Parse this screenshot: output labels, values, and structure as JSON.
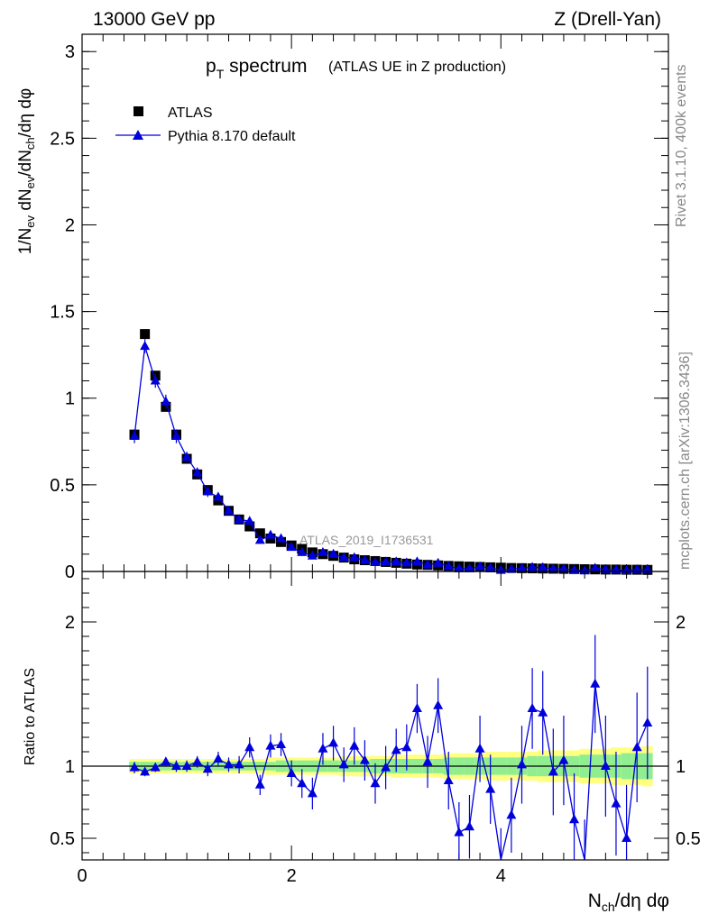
{
  "header": {
    "energy": "13000 GeV pp",
    "process": "Z (Drell-Yan)"
  },
  "side_text": {
    "rivet": "Rivet 3.1.10,  400k events",
    "mcplots": "mcplots.cern.ch [arXiv:1306.3436]"
  },
  "title": {
    "main_p": "p",
    "main_sub": "T",
    "main_rest": " spectrum",
    "context": "(ATLAS UE in Z production)"
  },
  "analysis_label": "ATLAS_2019_I1736531",
  "colors": {
    "data": "#000000",
    "mc": "#0000dd",
    "band_inner": "#90ee90",
    "band_outer": "#ffff80"
  },
  "chart_data": [
    {
      "type": "scatter",
      "ylabel": "1/Nev dNev/dNch/dη dφ",
      "xlim": [
        0,
        5.6
      ],
      "ylim": [
        0,
        3.1
      ],
      "yticks": [
        0,
        0.5,
        1,
        1.5,
        2,
        2.5,
        3
      ],
      "ytick_labels": [
        "0",
        "0.5",
        "1",
        "1.5",
        "2",
        "2.5",
        "3"
      ],
      "legend": {
        "placement": "top-left",
        "data_label": "ATLAS",
        "mc_label": "Pythia 8.170 default"
      },
      "x": [
        0.5,
        0.6,
        0.7,
        0.8,
        0.9,
        1.0,
        1.1,
        1.2,
        1.3,
        1.4,
        1.5,
        1.6,
        1.7,
        1.8,
        1.9,
        2.0,
        2.1,
        2.2,
        2.3,
        2.4,
        2.5,
        2.6,
        2.7,
        2.8,
        2.9,
        3.0,
        3.1,
        3.2,
        3.3,
        3.4,
        3.5,
        3.6,
        3.7,
        3.8,
        3.9,
        4.0,
        4.1,
        4.2,
        4.3,
        4.4,
        4.5,
        4.6,
        4.7,
        4.8,
        4.9,
        5.0,
        5.1,
        5.2,
        5.3,
        5.4
      ],
      "series": [
        {
          "name": "ATLAS",
          "values": [
            0.79,
            1.37,
            1.13,
            0.95,
            0.79,
            0.65,
            0.56,
            0.47,
            0.41,
            0.35,
            0.3,
            0.26,
            0.22,
            0.19,
            0.17,
            0.15,
            0.13,
            0.11,
            0.1,
            0.09,
            0.08,
            0.07,
            0.065,
            0.06,
            0.055,
            0.05,
            0.045,
            0.04,
            0.038,
            0.035,
            0.032,
            0.03,
            0.028,
            0.026,
            0.024,
            0.022,
            0.02,
            0.019,
            0.018,
            0.017,
            0.016,
            0.015,
            0.014,
            0.013,
            0.012,
            0.011,
            0.011,
            0.01,
            0.01,
            0.009
          ]
        },
        {
          "name": "Pythia 8.170 default",
          "values": [
            0.78,
            1.3,
            1.1,
            0.98,
            0.78,
            0.66,
            0.57,
            0.46,
            0.43,
            0.35,
            0.3,
            0.29,
            0.18,
            0.21,
            0.19,
            0.14,
            0.11,
            0.09,
            0.11,
            0.1,
            0.08,
            0.08,
            0.065,
            0.052,
            0.055,
            0.056,
            0.05,
            0.056,
            0.039,
            0.048,
            0.029,
            0.016,
            0.016,
            0.028,
            0.02,
            0.007,
            0.013,
            0.019,
            0.024,
            0.023,
            0.015,
            0.015,
            0.009,
            0.004,
            0.019,
            0.011,
            0.009,
            0.005,
            0.011,
            0.011
          ],
          "errors": [
            0.04,
            0.04,
            0.04,
            0.04,
            0.04,
            0.03,
            0.03,
            0.03,
            0.02,
            0.02,
            0.02,
            0.02,
            0.02,
            0.01,
            0.01,
            0.01,
            0.01,
            0.01,
            0.01,
            0.01,
            0.01,
            0.01,
            0.01,
            0.01,
            0.01,
            0.01,
            0.01,
            0.01,
            0.01,
            0.01,
            0.01,
            0.01,
            0.01,
            0.01,
            0.01,
            0.01,
            0.01,
            0.01,
            0.01,
            0.01,
            0.01,
            0.01,
            0.01,
            0.01,
            0.01,
            0.01,
            0.01,
            0.01,
            0.01,
            0.01
          ]
        }
      ]
    },
    {
      "type": "line",
      "xlabel": "Nch/dη dφ",
      "ylabel": "Ratio to ATLAS",
      "xlim": [
        0,
        5.6
      ],
      "ylim": [
        0.35,
        2.35
      ],
      "xticks": [
        0,
        2,
        4
      ],
      "xtick_labels": [
        "0",
        "2",
        "4"
      ],
      "yticks": [
        0.5,
        1,
        2
      ],
      "ytick_labels": [
        "0.5",
        "1",
        "2"
      ],
      "x": [
        0.5,
        0.6,
        0.7,
        0.8,
        0.9,
        1.0,
        1.1,
        1.2,
        1.3,
        1.4,
        1.5,
        1.6,
        1.7,
        1.8,
        1.9,
        2.0,
        2.1,
        2.2,
        2.3,
        2.4,
        2.5,
        2.6,
        2.7,
        2.8,
        2.9,
        3.0,
        3.1,
        3.2,
        3.3,
        3.4,
        3.5,
        3.6,
        3.7,
        3.8,
        3.9,
        4.0,
        4.1,
        4.2,
        4.3,
        4.4,
        4.5,
        4.6,
        4.7,
        4.8,
        4.9,
        5.0,
        5.1,
        5.2,
        5.3,
        5.4
      ],
      "series": [
        {
          "name": "Pythia 8.170 default",
          "values": [
            0.99,
            0.96,
            0.99,
            1.03,
            1.0,
            1.0,
            1.03,
            0.98,
            1.05,
            1.01,
            1.01,
            1.13,
            0.87,
            1.14,
            1.15,
            0.95,
            0.88,
            0.81,
            1.12,
            1.16,
            1.01,
            1.14,
            1.04,
            0.88,
            0.99,
            1.11,
            1.13,
            1.4,
            1.03,
            1.42,
            0.9,
            0.54,
            0.58,
            1.12,
            0.84,
            0.32,
            0.66,
            1.01,
            1.4,
            1.37,
            0.96,
            1.04,
            0.63,
            0.3,
            1.57,
            1.0,
            0.74,
            0.5,
            1.13,
            1.3
          ],
          "errors": [
            0.04,
            0.03,
            0.03,
            0.03,
            0.04,
            0.04,
            0.04,
            0.05,
            0.05,
            0.05,
            0.06,
            0.07,
            0.07,
            0.08,
            0.08,
            0.09,
            0.1,
            0.11,
            0.11,
            0.12,
            0.12,
            0.13,
            0.14,
            0.14,
            0.15,
            0.15,
            0.16,
            0.17,
            0.18,
            0.19,
            0.2,
            0.21,
            0.22,
            0.23,
            0.24,
            0.25,
            0.26,
            0.27,
            0.28,
            0.29,
            0.3,
            0.31,
            0.32,
            0.33,
            0.34,
            0.35,
            0.36,
            0.37,
            0.38,
            0.39
          ]
        }
      ],
      "band_inner": [
        0.03,
        0.03,
        0.03,
        0.03,
        0.03,
        0.03,
        0.03,
        0.03,
        0.03,
        0.03,
        0.03,
        0.03,
        0.03,
        0.03,
        0.04,
        0.04,
        0.04,
        0.04,
        0.04,
        0.04,
        0.04,
        0.04,
        0.04,
        0.05,
        0.05,
        0.05,
        0.05,
        0.05,
        0.05,
        0.05,
        0.06,
        0.06,
        0.06,
        0.06,
        0.06,
        0.06,
        0.06,
        0.06,
        0.07,
        0.07,
        0.07,
        0.07,
        0.07,
        0.08,
        0.08,
        0.08,
        0.08,
        0.09,
        0.09,
        0.09
      ],
      "band_outer": [
        0.05,
        0.05,
        0.05,
        0.05,
        0.05,
        0.05,
        0.05,
        0.05,
        0.05,
        0.05,
        0.05,
        0.05,
        0.05,
        0.06,
        0.06,
        0.06,
        0.06,
        0.06,
        0.06,
        0.06,
        0.07,
        0.07,
        0.07,
        0.07,
        0.07,
        0.08,
        0.08,
        0.08,
        0.08,
        0.08,
        0.09,
        0.09,
        0.09,
        0.09,
        0.1,
        0.1,
        0.1,
        0.1,
        0.1,
        0.11,
        0.11,
        0.11,
        0.11,
        0.12,
        0.12,
        0.12,
        0.13,
        0.13,
        0.13,
        0.14
      ]
    }
  ]
}
